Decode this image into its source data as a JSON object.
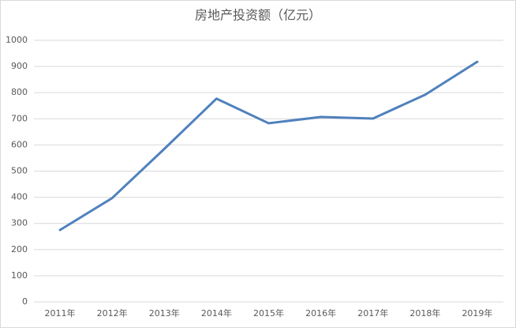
{
  "chart_data": {
    "type": "line",
    "title": "房地产投资额（亿元）",
    "categories": [
      "2011年",
      "2012年",
      "2013年",
      "2014年",
      "2015年",
      "2016年",
      "2017年",
      "2018年",
      "2019年"
    ],
    "series": [
      {
        "name": null,
        "color": "#4f81bd",
        "values": [
          275,
          397,
          585,
          777,
          683,
          707,
          701,
          792,
          918
        ]
      }
    ],
    "ylim": [
      0,
      1000
    ],
    "yticks": [
      0,
      100,
      200,
      300,
      400,
      500,
      600,
      700,
      800,
      900,
      1000
    ],
    "grid": true
  }
}
